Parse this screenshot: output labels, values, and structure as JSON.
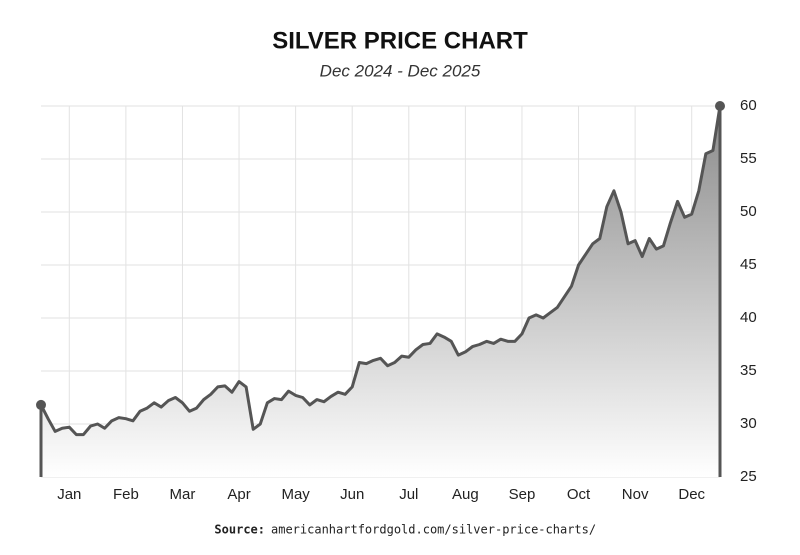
{
  "chart_data": {
    "type": "area",
    "title": "SILVER PRICE CHART",
    "subtitle": "Dec 2024 - Dec 2025",
    "source_label": "Source:",
    "source": "americanhartfordgold.com/silver-price-charts/",
    "categories": [
      null,
      null,
      null,
      null,
      "Jan",
      null,
      null,
      null,
      null,
      null,
      null,
      null,
      "Feb",
      null,
      null,
      null,
      null,
      null,
      null,
      null,
      "Mar",
      null,
      null,
      null,
      null,
      null,
      null,
      null,
      "Apr",
      null,
      null,
      null,
      null,
      null,
      null,
      null,
      "May",
      null,
      null,
      null,
      null,
      null,
      null,
      null,
      "Jun",
      null,
      null,
      null,
      null,
      null,
      null,
      null,
      "Jul",
      null,
      null,
      null,
      null,
      null,
      null,
      null,
      "Aug",
      null,
      null,
      null,
      null,
      null,
      null,
      null,
      "Sep",
      null,
      null,
      null,
      null,
      null,
      null,
      null,
      "Oct",
      null,
      null,
      null,
      null,
      null,
      null,
      null,
      "Nov",
      null,
      null,
      null,
      null,
      null,
      null,
      null,
      "Dec",
      null,
      null,
      null,
      null
    ],
    "values": [
      31.8,
      30.5,
      29.3,
      29.6,
      29.7,
      29,
      29,
      29.8,
      30,
      29.6,
      30.3,
      30.6,
      30.5,
      30.3,
      31.2,
      31.5,
      32,
      31.6,
      32.2,
      32.5,
      32,
      31.2,
      31.5,
      32.3,
      32.8,
      33.5,
      33.6,
      33,
      34,
      33.5,
      29.5,
      30,
      32,
      32.4,
      32.3,
      33.1,
      32.7,
      32.5,
      31.8,
      32.3,
      32.1,
      32.6,
      33,
      32.8,
      33.5,
      35.8,
      35.7,
      36,
      36.2,
      35.5,
      35.8,
      36.4,
      36.3,
      37,
      37.5,
      37.6,
      38.5,
      38.2,
      37.8,
      36.5,
      36.8,
      37.3,
      37.5,
      37.8,
      37.6,
      38,
      37.8,
      37.8,
      38.5,
      40,
      40.3,
      40,
      40.5,
      41,
      42,
      43,
      45,
      46,
      47,
      47.5,
      50.5,
      52,
      50,
      47,
      47.3,
      45.8,
      47.5,
      46.5,
      46.8,
      49,
      51,
      49.5,
      49.8,
      52,
      55.5,
      55.8,
      60
    ],
    "color": "#555555",
    "ylim": [
      25,
      60
    ],
    "yticks": [
      25,
      30,
      35,
      40,
      45,
      50,
      55,
      60
    ],
    "grid": true
  }
}
